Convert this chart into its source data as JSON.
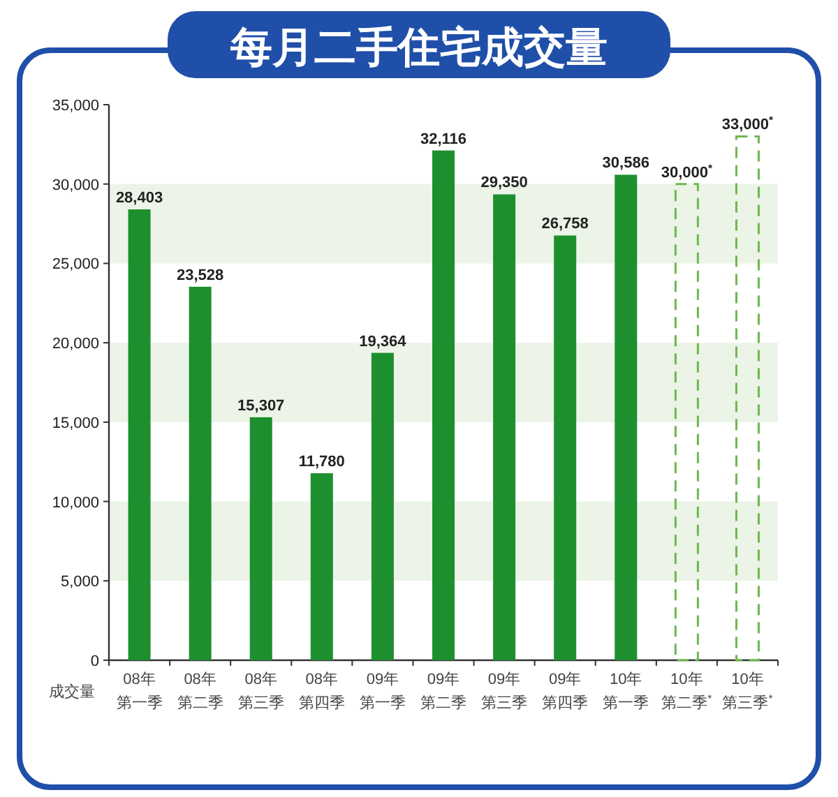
{
  "chart_data": {
    "type": "bar",
    "title": "每月二手住宅成交量",
    "ylabel": "成交量",
    "categories": [
      "08年第一季",
      "08年第二季",
      "08年第三季",
      "08年第四季",
      "09年第一季",
      "09年第二季",
      "09年第三季",
      "09年第四季",
      "10年第一季",
      "10年第二季$^{*}$",
      "10年第三季$^{*}$"
    ],
    "stacked": true,
    "series": [
      {
        "color": "#1e8f2e",
        "line_style": "solid",
        "values": [
          28403,
          23528,
          15307,
          11780,
          19364,
          32116,
          29350,
          26758,
          30586,
          null,
          null
        ],
        "value_labels": [
          "28,403",
          "23,528",
          "15,307",
          "11,780",
          "19,364",
          "32,116",
          "29,350",
          "26,758",
          "30,586",
          null,
          null
        ]
      },
      {
        "color": "#6cb84e",
        "line_style": "dashed",
        "values": [
          null,
          null,
          null,
          null,
          null,
          null,
          null,
          null,
          null,
          30000,
          33000
        ],
        "value_labels": [
          null,
          null,
          null,
          null,
          null,
          null,
          null,
          null,
          null,
          "30,000$^{*}$",
          "33,000$^{*}$"
        ]
      }
    ],
    "ylim": [
      0,
      35000
    ],
    "yticks": [
      {
        "value": 0,
        "label": "0"
      },
      {
        "value": 5000,
        "label": "5,000"
      },
      {
        "value": 10000,
        "label": "10,000"
      },
      {
        "value": 15000,
        "label": "15,000"
      },
      {
        "value": 20000,
        "label": "20,000"
      },
      {
        "value": 25000,
        "label": "25,000"
      },
      {
        "value": 30000,
        "label": "30,000"
      },
      {
        "value": 35000,
        "label": "35,000"
      }
    ],
    "bands": [
      {
        "axis": "y",
        "from": 5000,
        "to": 10000,
        "color": "#ebf4e7"
      },
      {
        "axis": "y",
        "from": 15000,
        "to": 20000,
        "color": "#ebf4e7"
      },
      {
        "axis": "y",
        "from": 25000,
        "to": 30000,
        "color": "#ebf4e7"
      }
    ],
    "grid": false
  }
}
